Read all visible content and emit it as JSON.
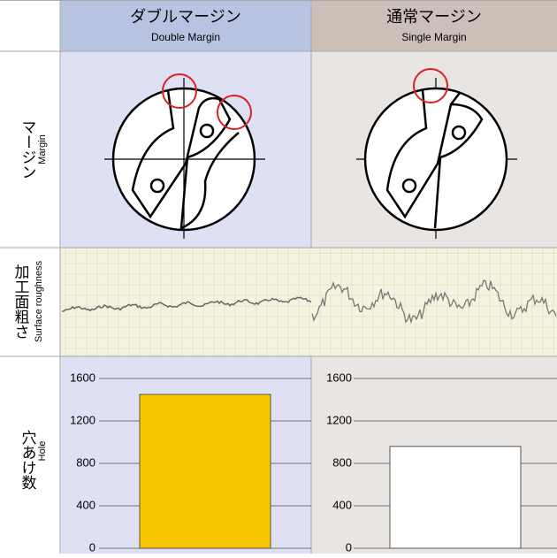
{
  "header": {
    "col1": {
      "title": "ダブルマージン",
      "subtitle": "Double Margin"
    },
    "col2": {
      "title": "通常マージン",
      "subtitle": "Single Margin"
    }
  },
  "rows": [
    {
      "label": "マージン",
      "sublabel": "Margin"
    },
    {
      "label": "加工面粗さ",
      "sublabel": "Surface roughness"
    },
    {
      "label": "穴あけ数",
      "sublabel": "Hole"
    }
  ],
  "chart_data": [
    {
      "type": "bar",
      "values": [
        1450
      ],
      "color": "#f7c600",
      "ylim": [
        0,
        1600
      ],
      "yticks": [
        0,
        400,
        800,
        1200,
        1600
      ],
      "grid": true
    },
    {
      "type": "bar",
      "values": [
        960
      ],
      "color": "#ffffff",
      "ylim": [
        0,
        1600
      ],
      "yticks": [
        0,
        400,
        800,
        1200,
        1600
      ],
      "grid": true
    }
  ]
}
